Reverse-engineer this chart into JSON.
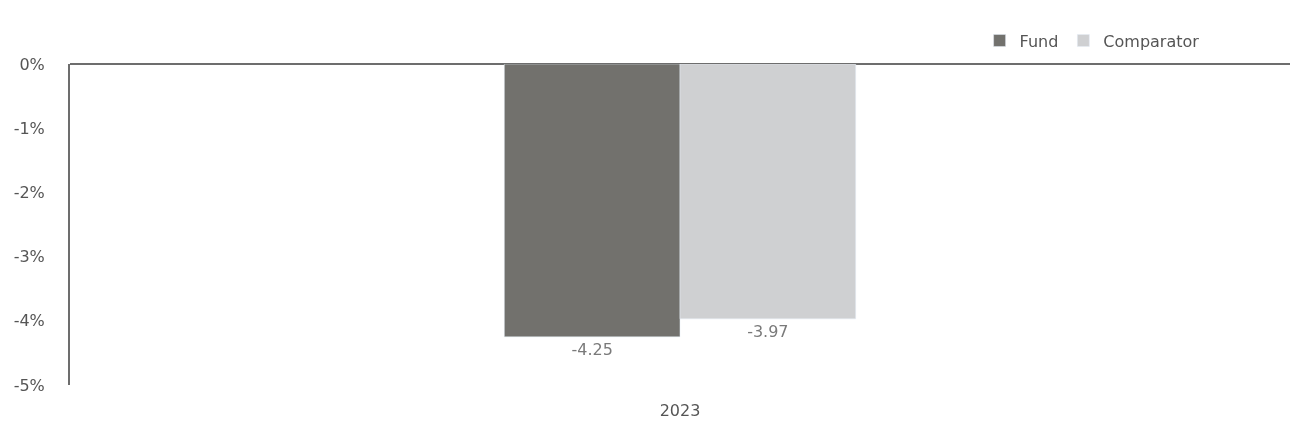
{
  "chart_data": {
    "type": "bar",
    "categories": [
      "2023"
    ],
    "series": [
      {
        "name": "Fund",
        "color": "#72716d",
        "values": [
          -4.25
        ]
      },
      {
        "name": "Comparator",
        "color": "#cfd0d2",
        "values": [
          -3.97
        ]
      }
    ],
    "ylim": [
      -5,
      0
    ],
    "yticks": [
      {
        "value": 0,
        "label": "0%"
      },
      {
        "value": -1,
        "label": "-1%"
      },
      {
        "value": -2,
        "label": "-2%"
      },
      {
        "value": -3,
        "label": "-3%"
      },
      {
        "value": -4,
        "label": "-4%"
      },
      {
        "value": -5,
        "label": "-5%"
      }
    ],
    "data_labels": true,
    "legend": "top right"
  }
}
